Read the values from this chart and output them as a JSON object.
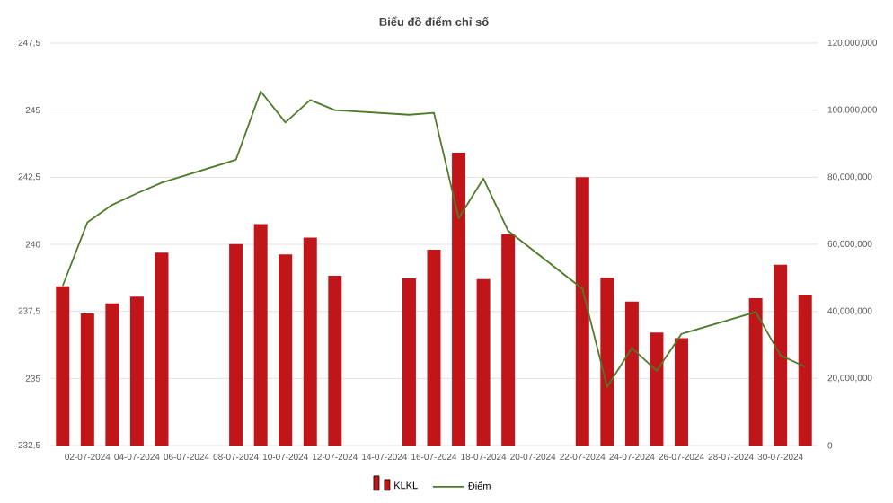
{
  "chart_data": {
    "type": "bar",
    "title": "Biểu đồ điểm chỉ số",
    "x": [
      "2024-07-01",
      "2024-07-02",
      "2024-07-03",
      "2024-07-04",
      "2024-07-05",
      "2024-07-08",
      "2024-07-09",
      "2024-07-10",
      "2024-07-11",
      "2024-07-12",
      "2024-07-15",
      "2024-07-16",
      "2024-07-17",
      "2024-07-18",
      "2024-07-19",
      "2024-07-22",
      "2024-07-23",
      "2024-07-24",
      "2024-07-25",
      "2024-07-26",
      "2024-07-29",
      "2024-07-30",
      "2024-07-31"
    ],
    "series": [
      {
        "name": "KLKL",
        "axis": "y2",
        "color": "#c0161a",
        "values": [
          47500000,
          39400000,
          42400000,
          44400000,
          57500000,
          60100000,
          66000000,
          57000000,
          62000000,
          50600000,
          49800000,
          58400000,
          87300000,
          49600000,
          63000000,
          80000000,
          50100000,
          42900000,
          33700000,
          32000000,
          43900000,
          53900000,
          45000000
        ]
      },
      {
        "name": "Điểm",
        "type": "line",
        "axis": "y",
        "color": "#4e7a2a",
        "line_style": "solid",
        "values": [
          238.45,
          240.82,
          241.47,
          241.9,
          242.3,
          243.15,
          245.7,
          244.54,
          245.38,
          245.0,
          244.83,
          244.9,
          240.97,
          242.45,
          240.5,
          238.34,
          234.68,
          236.14,
          235.28,
          236.66,
          237.48,
          235.86,
          235.43
        ]
      }
    ],
    "xlim": [
      "2024-06-30T12:00",
      "2024-07-31T12:00"
    ],
    "xticks": [
      {
        "value": "2024-07-02",
        "label": "02-07-2024"
      },
      {
        "value": "2024-07-04",
        "label": "04-07-2024"
      },
      {
        "value": "2024-07-06",
        "label": "06-07-2024"
      },
      {
        "value": "2024-07-08",
        "label": "08-07-2024"
      },
      {
        "value": "2024-07-10",
        "label": "10-07-2024"
      },
      {
        "value": "2024-07-12",
        "label": "12-07-2024"
      },
      {
        "value": "2024-07-14",
        "label": "14-07-2024"
      },
      {
        "value": "2024-07-16",
        "label": "16-07-2024"
      },
      {
        "value": "2024-07-18",
        "label": "18-07-2024"
      },
      {
        "value": "2024-07-20",
        "label": "20-07-2024"
      },
      {
        "value": "2024-07-22",
        "label": "22-07-2024"
      },
      {
        "value": "2024-07-24",
        "label": "24-07-2024"
      },
      {
        "value": "2024-07-26",
        "label": "26-07-2024"
      },
      {
        "value": "2024-07-28",
        "label": "28-07-2024"
      },
      {
        "value": "2024-07-30",
        "label": "30-07-2024"
      }
    ],
    "ylim": [
      232.5,
      247.5
    ],
    "yticks": [
      {
        "value": 232.5,
        "label": "232,5"
      },
      235,
      {
        "value": 237.5,
        "label": "237,5"
      },
      240,
      {
        "value": 242.5,
        "label": "242,5"
      },
      245,
      {
        "value": 247.5,
        "label": "247,5"
      }
    ],
    "y2lim": [
      0,
      120000000
    ],
    "y2ticks": [
      0,
      {
        "value": 20000000,
        "label": "20,000,000"
      },
      {
        "value": 40000000,
        "label": "40,000,000"
      },
      {
        "value": 60000000,
        "label": "60,000,000"
      },
      {
        "value": 80000000,
        "label": "80,000,000"
      },
      {
        "value": 100000000,
        "label": "100,000,000"
      },
      {
        "value": 120000000,
        "label": "120,000,000"
      }
    ],
    "grid": "y",
    "legend": "bottom"
  }
}
